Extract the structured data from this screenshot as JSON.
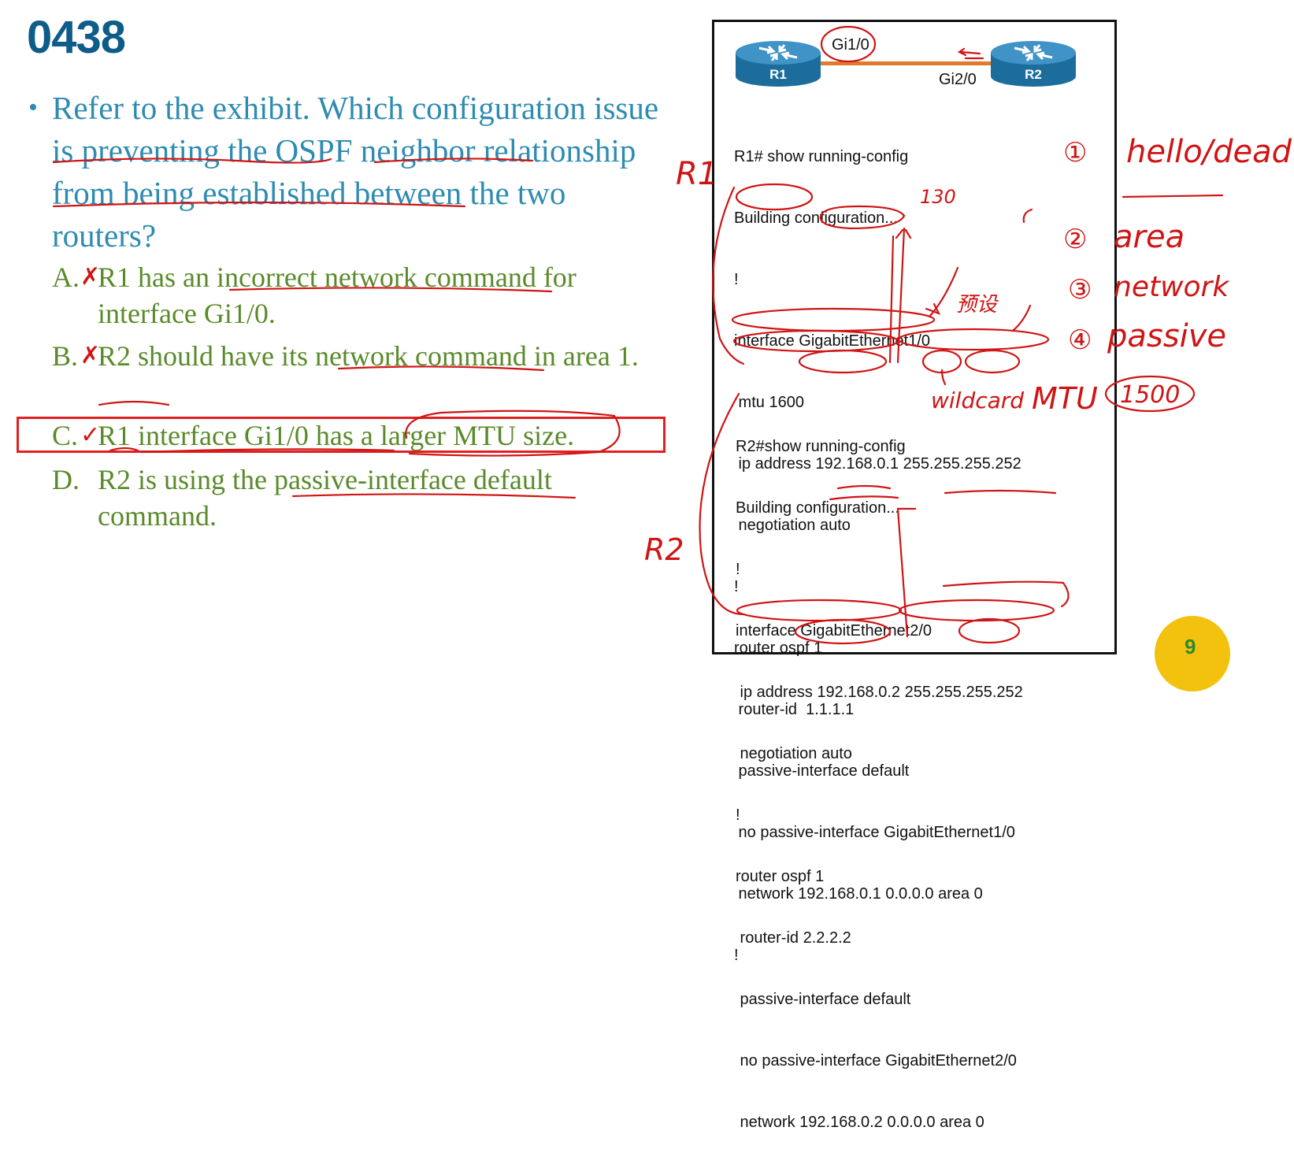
{
  "title": "0438",
  "question": {
    "bullet": "•",
    "text": "Refer to the exhibit. Which configuration issue is preventing the OSPF neighbor relationship from being established between the two routers?"
  },
  "options": [
    {
      "letter": "A.",
      "mark": "✗",
      "text": "R1 has an incorrect network command for interface Gi1/0."
    },
    {
      "letter": "B.",
      "mark": "✗",
      "text": "R2 should have its network command in area 1."
    },
    {
      "letter": "C.",
      "mark": "✓",
      "text": "R1 interface Gi1/0 has a larger MTU size."
    },
    {
      "letter": "D.",
      "mark": "",
      "text": "R2 is using the passive-interface default command."
    }
  ],
  "exhibit": {
    "r1_label": "R1",
    "r2_label": "R2",
    "r1_if": "Gi1/0",
    "r2_if": "Gi2/0",
    "r1_config": [
      "R1# show running-config",
      "Building configuration...",
      "!",
      "interface GigabitEthernet1/0",
      " mtu 1600",
      " ip address 192.168.0.1 255.255.255.252",
      " negotiation auto",
      "!",
      "router ospf 1",
      " router-id  1.1.1.1",
      " passive-interface default",
      " no passive-interface GigabitEthernet1/0",
      " network 192.168.0.1 0.0.0.0 area 0",
      "!"
    ],
    "r2_config": [
      "R2#show running-config",
      "Building configuration...",
      "!",
      "interface GigabitEthernet2/0",
      " ip address 192.168.0.2 255.255.255.252",
      " negotiation auto",
      "!",
      "router ospf 1",
      " router-id 2.2.2.2",
      " passive-interface default",
      " no passive-interface GigabitEthernet2/0",
      " network 192.168.0.2 0.0.0.0 area 0"
    ]
  },
  "annotations": {
    "r1": "R1",
    "r2": "R2",
    "mtu_note": "130",
    "default_note": "预设",
    "wildcard": "wildcard",
    "mtu": "MTU",
    "mtu_value": "1500",
    "checklist": [
      {
        "num": "①",
        "text": "hello/dead"
      },
      {
        "num": "②",
        "text": "area"
      },
      {
        "num": "③",
        "text": "network"
      },
      {
        "num": "④",
        "text": "passive"
      }
    ]
  },
  "colors": {
    "title": "#0e5c8a",
    "question": "#2e8bb1",
    "options": "#5a8a2a",
    "ink": "#d01414"
  },
  "logo": {
    "icon": "corner-logo-icon",
    "text": "9"
  }
}
